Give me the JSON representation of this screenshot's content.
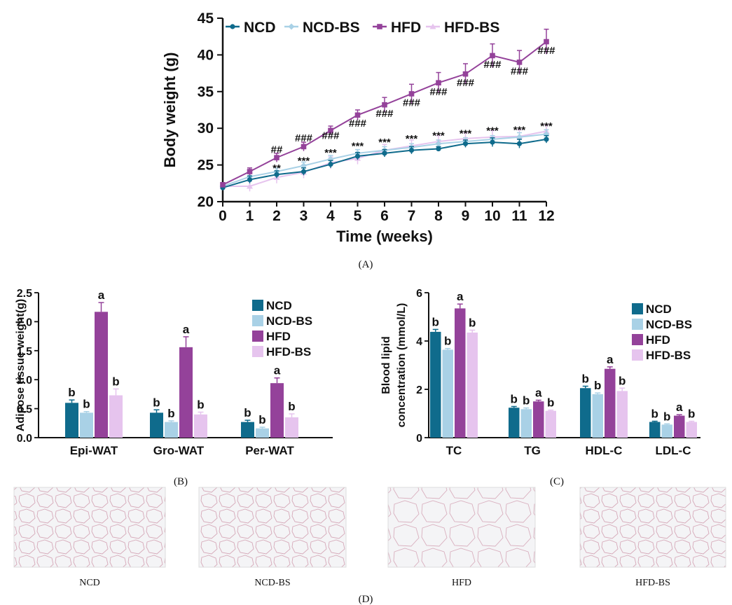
{
  "colors": {
    "NCD": "#0f6b8c",
    "NCD-BS": "#a9d1e6",
    "HFD": "#94429a",
    "HFD-BS": "#e6c4ee"
  },
  "panels": {
    "A": {
      "label": "(A)"
    },
    "B": {
      "label": "(B)"
    },
    "C": {
      "label": "(C)"
    },
    "D": {
      "label": "(D)"
    }
  },
  "histology": {
    "labels": [
      "NCD",
      "NCD-BS",
      "HFD",
      "HFD-BS"
    ]
  },
  "chart_data": [
    {
      "id": "A",
      "type": "line",
      "xlabel": "Time (weeks)",
      "ylabel": "Body weight (g)",
      "xlim": [
        0,
        12
      ],
      "ylim": [
        20,
        45
      ],
      "x": [
        0,
        1,
        2,
        3,
        4,
        5,
        6,
        7,
        8,
        9,
        10,
        11,
        12
      ],
      "xticks": [
        "0",
        "1",
        "2",
        "3",
        "4",
        "5",
        "6",
        "7",
        "8",
        "9",
        "10",
        "11",
        "12"
      ],
      "yticks": [
        "20",
        "25",
        "30",
        "35",
        "40",
        "45"
      ],
      "legend_position": "top",
      "series": [
        {
          "name": "NCD",
          "marker": "circle",
          "values": [
            21.9,
            23.0,
            23.7,
            24.1,
            25.1,
            26.2,
            26.6,
            27.0,
            27.2,
            27.9,
            28.1,
            27.9,
            28.5
          ],
          "err": [
            0.3,
            0.5,
            0.5,
            0.5,
            0.5,
            0.5,
            0.5,
            0.5,
            0.3,
            0.5,
            0.6,
            0.6,
            0.5
          ]
        },
        {
          "name": "NCD-BS",
          "marker": "diamond",
          "values": [
            22.1,
            23.4,
            24.1,
            24.9,
            25.8,
            26.6,
            27.0,
            27.4,
            27.9,
            28.2,
            28.5,
            28.8,
            29.2
          ],
          "err": [
            0.3,
            0.5,
            0.5,
            0.5,
            0.5,
            0.5,
            0.5,
            0.5,
            0.5,
            0.5,
            0.5,
            0.6,
            0.6
          ]
        },
        {
          "name": "HFD",
          "marker": "square",
          "values": [
            22.3,
            24.1,
            26.0,
            27.5,
            29.7,
            31.8,
            33.2,
            34.7,
            36.2,
            37.4,
            39.9,
            39.0,
            41.8
          ],
          "err": [
            0.3,
            0.5,
            0.6,
            0.6,
            0.6,
            0.7,
            1.0,
            1.3,
            1.4,
            1.4,
            1.6,
            1.6,
            1.7
          ]
        },
        {
          "name": "HFD-BS",
          "marker": "triangle",
          "values": [
            22.1,
            22.1,
            23.3,
            24.0,
            25.3,
            25.9,
            27.0,
            27.6,
            28.2,
            28.6,
            28.8,
            28.9,
            29.6
          ],
          "err": [
            0.3,
            0.7,
            0.8,
            0.8,
            0.8,
            0.8,
            0.8,
            0.8,
            0.8,
            0.8,
            0.9,
            0.9,
            0.9
          ]
        }
      ],
      "annotations": [
        {
          "x": 2,
          "y": 27.1,
          "text": "##"
        },
        {
          "x": 2,
          "y": 24.6,
          "text": "**"
        },
        {
          "x": 3,
          "y": 28.7,
          "text": "###"
        },
        {
          "x": 3,
          "y": 25.6,
          "text": "***"
        },
        {
          "x": 4,
          "y": 29.0,
          "text": "###"
        },
        {
          "x": 4,
          "y": 26.7,
          "text": "***"
        },
        {
          "x": 5,
          "y": 30.7,
          "text": "###"
        },
        {
          "x": 5,
          "y": 27.6,
          "text": "***"
        },
        {
          "x": 6,
          "y": 32.0,
          "text": "###"
        },
        {
          "x": 6,
          "y": 28.1,
          "text": "***"
        },
        {
          "x": 7,
          "y": 33.5,
          "text": "###"
        },
        {
          "x": 7,
          "y": 28.6,
          "text": "***"
        },
        {
          "x": 8,
          "y": 35.0,
          "text": "###"
        },
        {
          "x": 8,
          "y": 29.0,
          "text": "***"
        },
        {
          "x": 9,
          "y": 36.2,
          "text": "###"
        },
        {
          "x": 9,
          "y": 29.3,
          "text": "***"
        },
        {
          "x": 10,
          "y": 38.7,
          "text": "###"
        },
        {
          "x": 10,
          "y": 29.7,
          "text": "***"
        },
        {
          "x": 11,
          "y": 37.8,
          "text": "###"
        },
        {
          "x": 11,
          "y": 29.8,
          "text": "***"
        },
        {
          "x": 12,
          "y": 40.6,
          "text": "###"
        },
        {
          "x": 12,
          "y": 30.3,
          "text": "***"
        }
      ]
    },
    {
      "id": "B",
      "type": "bar",
      "xlabel": "",
      "ylabel": "Adipose tissue weight(g)",
      "ylim": [
        0,
        2.5
      ],
      "yticks": [
        "0.0",
        "0.5",
        "1.0",
        "1.5",
        "2.0",
        "2.5"
      ],
      "categories": [
        "Epi-WAT",
        "Gro-WAT",
        "Per-WAT"
      ],
      "legend_position": "top-right",
      "series": [
        {
          "name": "NCD",
          "values": [
            0.6,
            0.43,
            0.27
          ],
          "err": [
            0.05,
            0.05,
            0.03
          ]
        },
        {
          "name": "NCD-BS",
          "values": [
            0.43,
            0.27,
            0.16
          ],
          "err": [
            0.02,
            0.02,
            0.02
          ]
        },
        {
          "name": "HFD",
          "values": [
            2.17,
            1.56,
            0.94
          ],
          "err": [
            0.16,
            0.18,
            0.09
          ]
        },
        {
          "name": "HFD-BS",
          "values": [
            0.73,
            0.4,
            0.35
          ],
          "err": [
            0.11,
            0.04,
            0.06
          ]
        }
      ],
      "letters": [
        [
          "b",
          "b",
          "a",
          "b"
        ],
        [
          "b",
          "b",
          "a",
          "b"
        ],
        [
          "b",
          "b",
          "a",
          "b"
        ]
      ]
    },
    {
      "id": "C",
      "type": "bar",
      "xlabel": "",
      "ylabel": [
        "Blood lipid",
        "concentration (mmol/L)"
      ],
      "ylim": [
        0,
        6
      ],
      "yticks": [
        "0",
        "2",
        "4",
        "6"
      ],
      "categories": [
        "TC",
        "TG",
        "HDL-C",
        "LDL-C"
      ],
      "legend_position": "top-right",
      "series": [
        {
          "name": "NCD",
          "values": [
            4.38,
            1.24,
            2.05,
            0.65
          ],
          "err": [
            0.1,
            0.05,
            0.08,
            0.03
          ]
        },
        {
          "name": "NCD-BS",
          "values": [
            3.64,
            1.18,
            1.8,
            0.54
          ],
          "err": [
            0.05,
            0.05,
            0.05,
            0.03
          ]
        },
        {
          "name": "HFD",
          "values": [
            5.35,
            1.5,
            2.85,
            0.91
          ],
          "err": [
            0.18,
            0.05,
            0.08,
            0.04
          ]
        },
        {
          "name": "HFD-BS",
          "values": [
            4.35,
            1.11,
            1.93,
            0.65
          ],
          "err": [
            0.1,
            0.03,
            0.12,
            0.03
          ]
        }
      ],
      "letters": [
        [
          "b",
          "b",
          "a",
          "b"
        ],
        [
          "b",
          "b",
          "a",
          "b"
        ],
        [
          "b",
          "b",
          "a",
          "b"
        ],
        [
          "b",
          "b",
          "a",
          "b"
        ]
      ]
    }
  ]
}
